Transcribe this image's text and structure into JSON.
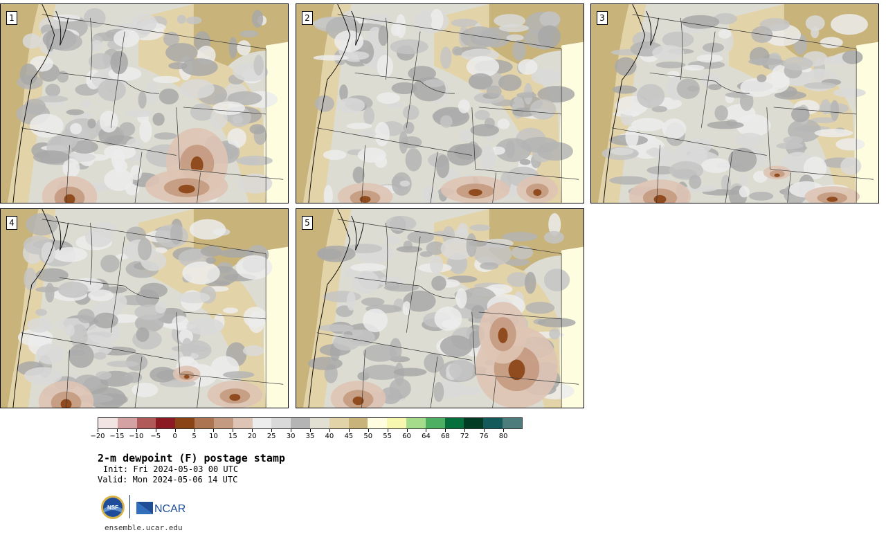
{
  "panels": [
    {
      "label": "1"
    },
    {
      "label": "2"
    },
    {
      "label": "3"
    },
    {
      "label": "4"
    },
    {
      "label": "5"
    }
  ],
  "colorbar": {
    "colors": [
      "#f3e4e4",
      "#d4a2a2",
      "#b05a5a",
      "#8c1a22",
      "#8a4314",
      "#ad7452",
      "#c49a80",
      "#dec4b4",
      "#ececec",
      "#d9d9d9",
      "#b4b4b4",
      "#e1e0d2",
      "#e3d3a8",
      "#c8b37a",
      "#fffde0",
      "#f7f7b0",
      "#a4dc8c",
      "#4caf62",
      "#06703c",
      "#033c24",
      "#145a5a",
      "#4c7d7c"
    ],
    "tick_labels": [
      "−20",
      "−15",
      "−10",
      "−5",
      "0",
      "5",
      "10",
      "15",
      "20",
      "25",
      "30",
      "35",
      "40",
      "45",
      "50",
      "55",
      "60",
      "64",
      "68",
      "72",
      "76",
      "80"
    ]
  },
  "title": "2-m dewpoint (F) postage stamp",
  "init": "Init: Fri 2024-05-03 00 UTC",
  "valid": "Valid: Mon 2024-05-06 14 UTC",
  "logos": {
    "nsf": "NSF",
    "ncar": "NCAR"
  },
  "site": "ensemble.ucar.edu"
}
